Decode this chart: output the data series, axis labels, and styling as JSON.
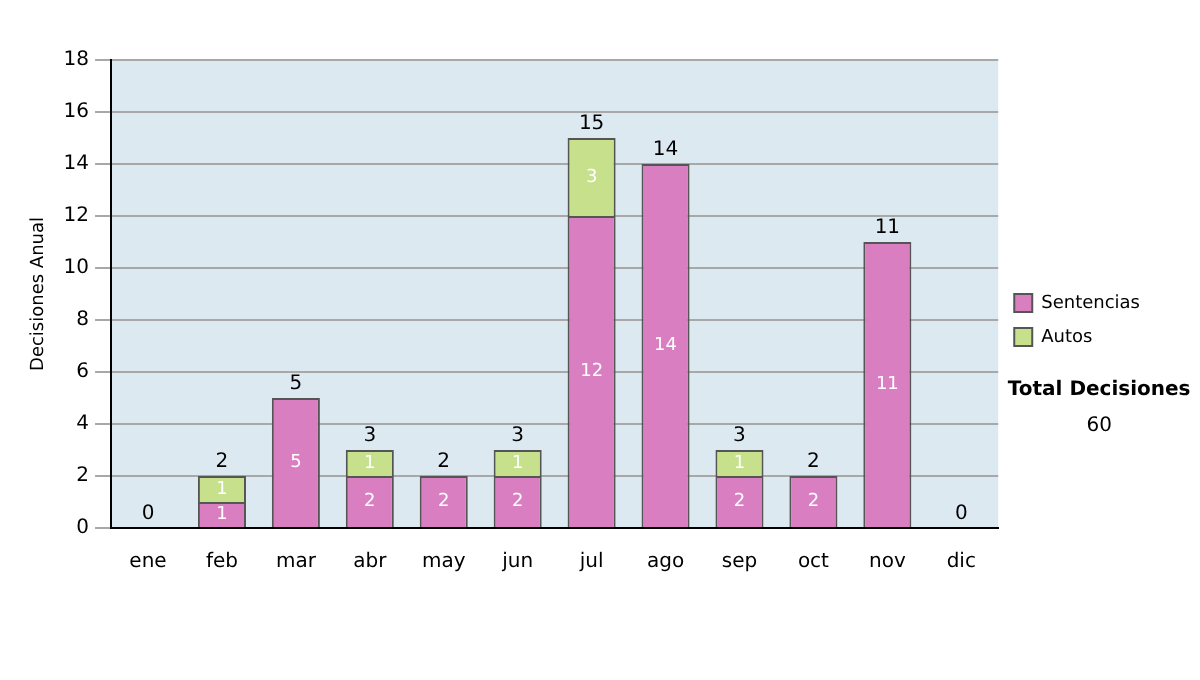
{
  "chart_data": {
    "type": "bar",
    "stacked": true,
    "ylabel": "Decisiones Anual",
    "categories": [
      "ene",
      "feb",
      "mar",
      "abr",
      "may",
      "jun",
      "jul",
      "ago",
      "sep",
      "oct",
      "nov",
      "dic"
    ],
    "series": [
      {
        "name": "Sentencias",
        "color": "#d97fc1",
        "values": [
          0,
          1,
          5,
          2,
          2,
          2,
          12,
          14,
          2,
          2,
          11,
          0
        ],
        "value_labels": [
          null,
          "1",
          "5",
          "2",
          "2",
          "2",
          "12",
          "14",
          "2",
          "2",
          "11",
          null
        ]
      },
      {
        "name": "Autos",
        "color": "#c6e08c",
        "values": [
          0,
          1,
          0,
          1,
          0,
          1,
          3,
          0,
          1,
          0,
          0,
          0
        ],
        "value_labels": [
          null,
          "1",
          null,
          "1",
          null,
          "1",
          "3",
          null,
          "1",
          null,
          null,
          null
        ]
      }
    ],
    "totals": [
      "0",
      "2",
      "5",
      "3",
      "2",
      "3",
      "15",
      "14",
      "3",
      "2",
      "11",
      "0"
    ],
    "ylim": [
      0,
      18
    ],
    "yticks": [
      0,
      2,
      4,
      6,
      8,
      10,
      12,
      14,
      16,
      18
    ],
    "grid": "y",
    "legend": "right",
    "annotations": [
      "Total Decisiones",
      "60"
    ]
  }
}
